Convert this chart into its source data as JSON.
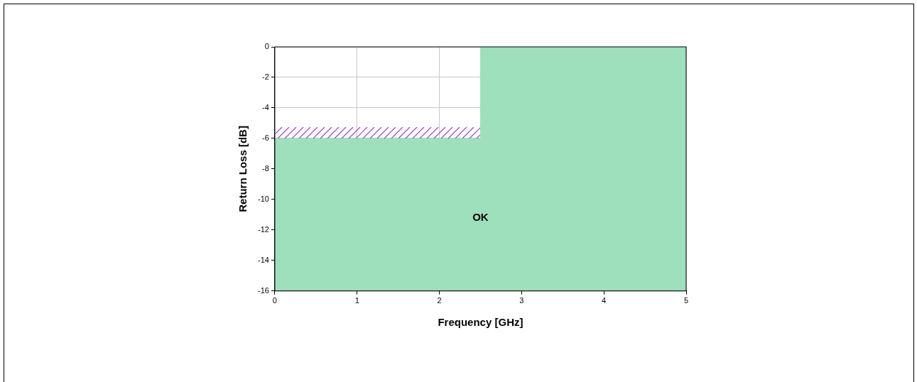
{
  "chart_data": {
    "type": "area",
    "xlabel": "Frequency [GHz]",
    "ylabel": "Return Loss [dB]",
    "series": [
      {
        "color": "#9de0bb",
        "x": [
          0,
          0,
          2.5,
          2.5,
          5,
          5
        ],
        "values": [
          -16,
          -6,
          -6,
          0,
          0,
          -16
        ]
      }
    ],
    "xlim": [
      0,
      5
    ],
    "xticks": [
      0,
      1,
      2,
      3,
      4,
      5
    ],
    "ylim": [
      -16,
      0
    ],
    "yticks": [
      -16,
      -14,
      -12,
      -10,
      -8,
      -6,
      -4,
      -2,
      0
    ],
    "annotations": [
      "OK"
    ],
    "grid": true,
    "legend": false,
    "marker": "none"
  }
}
